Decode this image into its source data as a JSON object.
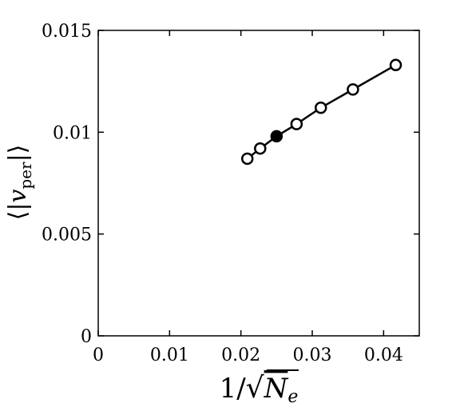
{
  "chart_data": {
    "type": "scatter",
    "title": "",
    "xlabel": "1/√Nₑ",
    "ylabel": "⟨|v_per|⟩",
    "xlim": [
      0,
      0.045
    ],
    "ylim": [
      0,
      0.015
    ],
    "x_ticks": [
      0,
      0.01,
      0.02,
      0.03,
      0.04
    ],
    "x_tick_labels": [
      "0",
      "0.01",
      "0.02",
      "0.03",
      "0.04"
    ],
    "y_ticks": [
      0,
      0.005,
      0.01,
      0.015
    ],
    "y_tick_labels": [
      "0",
      "0.005",
      "0.01",
      "0.015"
    ],
    "grid": false,
    "series": [
      {
        "x": [
          0.0209,
          0.0227,
          0.025,
          0.0278,
          0.0312,
          0.0357,
          0.0417
        ],
        "y": [
          0.0087,
          0.0092,
          0.0098,
          0.0104,
          0.0112,
          0.0121,
          0.0133
        ],
        "filled": [
          false,
          false,
          true,
          false,
          false,
          false,
          false
        ],
        "line": true,
        "marker": "circle",
        "color": "#000000"
      }
    ]
  }
}
